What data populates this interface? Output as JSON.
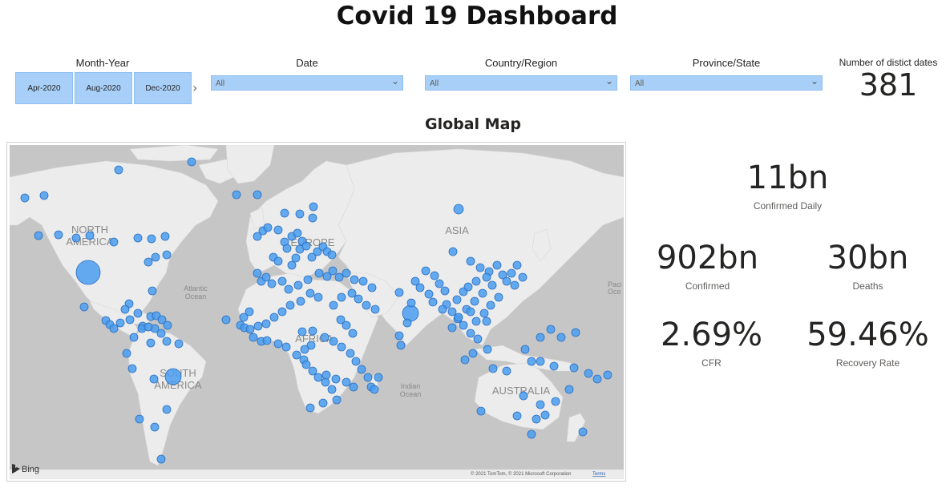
{
  "title": "Covid 19 Dashboard",
  "slicers": {
    "month_year": {
      "label": "Month-Year",
      "tiles": [
        "Apr-2020",
        "Aug-2020",
        "Dec-2020"
      ]
    },
    "date": {
      "label": "Date",
      "value": "All"
    },
    "country": {
      "label": "Country/Region",
      "value": "All"
    },
    "province": {
      "label": "Province/State",
      "value": "All"
    }
  },
  "distinct_dates": {
    "label": "Number of distict dates",
    "value": "381"
  },
  "map": {
    "title": "Global Map",
    "labels": {
      "north_america": [
        "NORTH",
        "AMERICA"
      ],
      "south_america": [
        "SOUTH",
        "AMERICA"
      ],
      "europe": "EUROPE",
      "asia": "ASIA",
      "africa": "AFRICA",
      "australia": "AUSTRALIA",
      "atlantic": [
        "Atlantic",
        "Ocean"
      ],
      "indian": [
        "Indian",
        "Ocean"
      ],
      "pacific": [
        "Paci",
        "Oce"
      ]
    },
    "logo": "Bing",
    "copyright": "© 2021 TomTom, © 2021 Microsoft Corporation",
    "terms": "Terms",
    "bubble_color": "#4a9df0"
  },
  "kpis": {
    "confirmed_daily": {
      "value": "11bn",
      "label": "Confirmed Daily"
    },
    "confirmed": {
      "value": "902bn",
      "label": "Confirmed"
    },
    "deaths": {
      "value": "30bn",
      "label": "Deaths"
    },
    "cfr": {
      "value": "2.69%",
      "label": "CFR"
    },
    "recovery_rate": {
      "value": "59.46%",
      "label": "Recovery Rate"
    }
  }
}
